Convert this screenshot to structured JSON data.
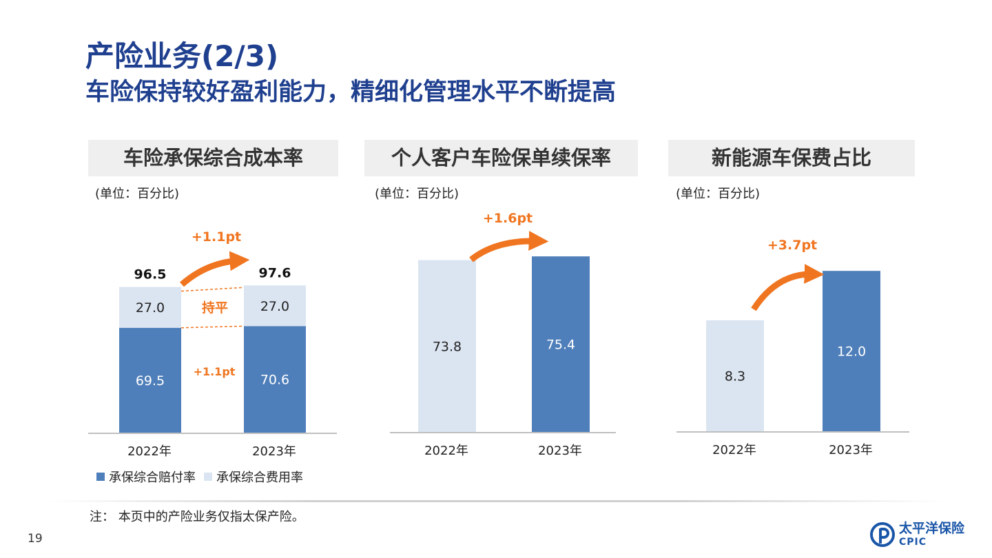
{
  "header": {
    "title": "产险业务(2/3)",
    "subtitle": "车险保持较好盈利能力，精细化管理水平不断提高"
  },
  "colors": {
    "title": "#1f3f8f",
    "bar_dark": "#4f7fba",
    "bar_light": "#dbe5f1",
    "accent": "#f07520"
  },
  "chart_data": [
    {
      "type": "bar",
      "stacked": true,
      "title": "车险承保综合成本率",
      "unit_note": "(单位：百分比)",
      "categories": [
        "2022年",
        "2023年"
      ],
      "series": [
        {
          "name": "承保综合赔付率",
          "values": [
            69.5,
            70.6
          ],
          "labels": [
            "69.5",
            "70.6"
          ]
        },
        {
          "name": "承保综合费用率",
          "values": [
            27.0,
            27.0
          ],
          "labels": [
            "27.0",
            "27.0"
          ]
        }
      ],
      "totals": [
        "96.5",
        "97.6"
      ],
      "annotations": {
        "total_change": "+1.1pt",
        "upper_change": "持平",
        "lower_change": "+1.1pt"
      },
      "legend": "bottom-left"
    },
    {
      "type": "bar",
      "title": "个人客户车险保单续保率",
      "unit_note": "(单位：百分比)",
      "categories": [
        "2022年",
        "2023年"
      ],
      "values": [
        73.8,
        75.4
      ],
      "labels": [
        "73.8",
        "75.4"
      ],
      "annotations": {
        "change": "+1.6pt"
      }
    },
    {
      "type": "bar",
      "title": "新能源车保费占比",
      "unit_note": "(单位：百分比)",
      "categories": [
        "2022年",
        "2023年"
      ],
      "values": [
        8.3,
        12.0
      ],
      "labels": [
        "8.3",
        "12.0"
      ],
      "annotations": {
        "change": "+3.7pt"
      }
    }
  ],
  "footer": {
    "note": "注： 本页中的产险业务仅指太保产险。",
    "page_number": "19",
    "logo_cn": "太平洋保险",
    "logo_en": "CPIC"
  }
}
